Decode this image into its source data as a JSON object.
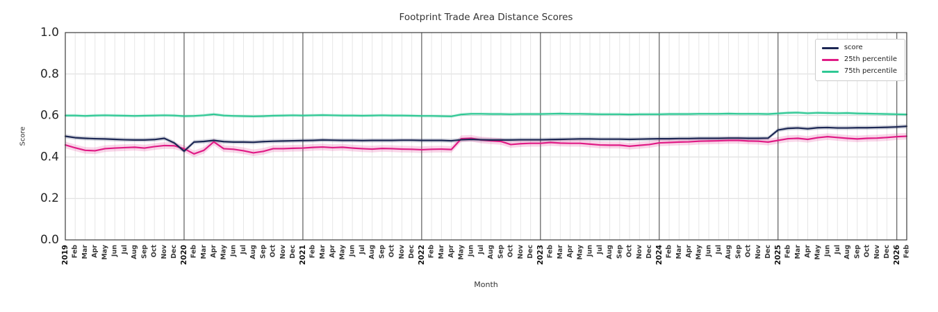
{
  "chart_data": {
    "type": "line",
    "title": "Footprint Trade Area Distance Scores",
    "xlabel": "Month",
    "ylabel": "Score",
    "ylim": [
      0.0,
      1.0
    ],
    "yticks": [
      "0.0",
      "0.2",
      "0.4",
      "0.6",
      "0.8",
      "1.0"
    ],
    "grid": true,
    "legend_position": "upper right",
    "categories": [
      "2019",
      "Feb",
      "Mar",
      "Apr",
      "May",
      "Jun",
      "Jul",
      "Aug",
      "Sep",
      "Oct",
      "Nov",
      "Dec",
      "2020",
      "Feb",
      "Mar",
      "Apr",
      "May",
      "Jun",
      "Jul",
      "Aug",
      "Sep",
      "Oct",
      "Nov",
      "Dec",
      "2021",
      "Feb",
      "Mar",
      "Apr",
      "May",
      "Jun",
      "Jul",
      "Aug",
      "Sep",
      "Oct",
      "Nov",
      "Dec",
      "2022",
      "Feb",
      "Mar",
      "Apr",
      "May",
      "Jun",
      "Jul",
      "Aug",
      "Sep",
      "Oct",
      "Nov",
      "Dec",
      "2023",
      "Feb",
      "Mar",
      "Apr",
      "May",
      "Jun",
      "Jul",
      "Aug",
      "Sep",
      "Oct",
      "Nov",
      "Dec",
      "2024",
      "Feb",
      "Mar",
      "Apr",
      "May",
      "Jun",
      "Jul",
      "Aug",
      "Sep",
      "Oct",
      "Nov",
      "Dec",
      "2025",
      "Feb",
      "Mar",
      "Apr",
      "May",
      "Jun",
      "Jul",
      "Aug",
      "Sep",
      "Oct",
      "Nov",
      "Dec",
      "2026",
      "Feb"
    ],
    "series": [
      {
        "name": "score",
        "color": "#1b2653",
        "band": 0.01,
        "values": [
          0.5,
          0.493,
          0.49,
          0.488,
          0.487,
          0.485,
          0.483,
          0.482,
          0.482,
          0.484,
          0.49,
          0.468,
          0.428,
          0.472,
          0.475,
          0.48,
          0.474,
          0.472,
          0.472,
          0.471,
          0.474,
          0.476,
          0.477,
          0.478,
          0.479,
          0.48,
          0.482,
          0.481,
          0.48,
          0.48,
          0.479,
          0.48,
          0.48,
          0.48,
          0.481,
          0.481,
          0.48,
          0.48,
          0.48,
          0.478,
          0.483,
          0.485,
          0.483,
          0.482,
          0.482,
          0.482,
          0.483,
          0.483,
          0.483,
          0.484,
          0.485,
          0.486,
          0.487,
          0.487,
          0.486,
          0.486,
          0.486,
          0.485,
          0.486,
          0.487,
          0.488,
          0.488,
          0.489,
          0.489,
          0.49,
          0.49,
          0.49,
          0.491,
          0.491,
          0.49,
          0.49,
          0.491,
          0.53,
          0.538,
          0.54,
          0.536,
          0.541,
          0.542,
          0.54,
          0.54,
          0.541,
          0.541,
          0.542,
          0.543,
          0.545,
          0.548
        ]
      },
      {
        "name": "25th percentile",
        "color": "#e01a85",
        "band": 0.016,
        "values": [
          0.458,
          0.444,
          0.432,
          0.43,
          0.44,
          0.443,
          0.445,
          0.447,
          0.443,
          0.45,
          0.455,
          0.454,
          0.44,
          0.415,
          0.432,
          0.473,
          0.44,
          0.437,
          0.43,
          0.42,
          0.427,
          0.44,
          0.44,
          0.442,
          0.443,
          0.446,
          0.448,
          0.445,
          0.447,
          0.443,
          0.44,
          0.438,
          0.441,
          0.44,
          0.438,
          0.437,
          0.435,
          0.437,
          0.438,
          0.436,
          0.488,
          0.49,
          0.482,
          0.478,
          0.475,
          0.46,
          0.464,
          0.466,
          0.466,
          0.47,
          0.467,
          0.466,
          0.466,
          0.462,
          0.458,
          0.457,
          0.457,
          0.452,
          0.456,
          0.46,
          0.468,
          0.47,
          0.472,
          0.473,
          0.476,
          0.477,
          0.478,
          0.48,
          0.48,
          0.477,
          0.476,
          0.472,
          0.48,
          0.488,
          0.49,
          0.485,
          0.493,
          0.498,
          0.494,
          0.49,
          0.487,
          0.49,
          0.491,
          0.494,
          0.498,
          0.5
        ]
      },
      {
        "name": "75th percentile",
        "color": "#2fc894",
        "band": 0.008,
        "values": [
          0.6,
          0.6,
          0.598,
          0.6,
          0.601,
          0.6,
          0.599,
          0.598,
          0.599,
          0.6,
          0.601,
          0.6,
          0.597,
          0.598,
          0.601,
          0.606,
          0.6,
          0.598,
          0.597,
          0.596,
          0.597,
          0.599,
          0.6,
          0.601,
          0.6,
          0.601,
          0.602,
          0.601,
          0.6,
          0.6,
          0.599,
          0.6,
          0.601,
          0.6,
          0.6,
          0.599,
          0.598,
          0.598,
          0.597,
          0.596,
          0.605,
          0.608,
          0.608,
          0.607,
          0.607,
          0.606,
          0.607,
          0.607,
          0.607,
          0.608,
          0.609,
          0.608,
          0.608,
          0.607,
          0.606,
          0.606,
          0.606,
          0.605,
          0.606,
          0.606,
          0.606,
          0.607,
          0.607,
          0.607,
          0.608,
          0.608,
          0.608,
          0.609,
          0.608,
          0.608,
          0.608,
          0.607,
          0.61,
          0.613,
          0.614,
          0.611,
          0.613,
          0.612,
          0.611,
          0.612,
          0.61,
          0.609,
          0.608,
          0.607,
          0.606,
          0.605
        ]
      }
    ]
  }
}
